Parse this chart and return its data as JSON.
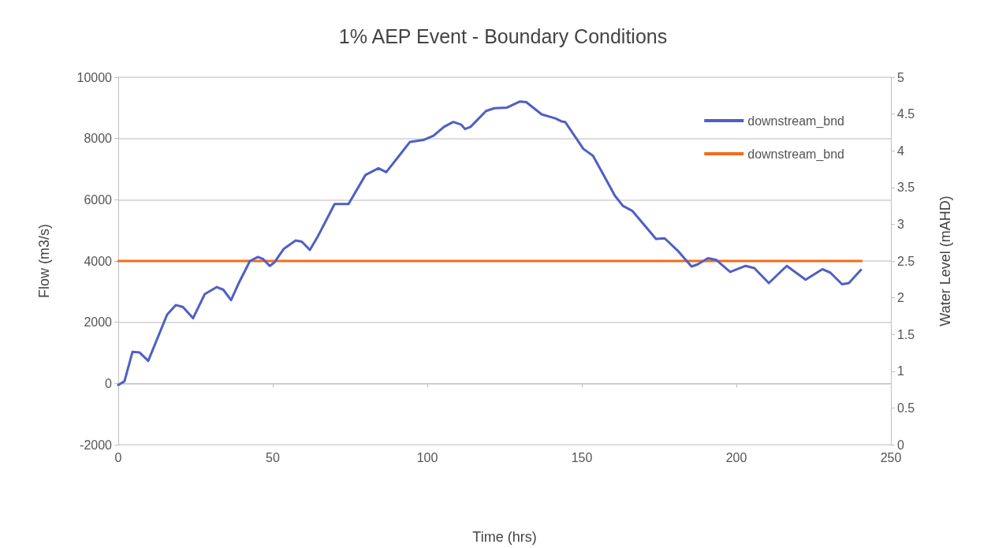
{
  "chart_data": {
    "type": "line",
    "title": "1% AEP Event - Boundary Conditions",
    "xlabel": "Time (hrs)",
    "ylabel": "Flow (m3/s)",
    "y2label": "Water Level (mAHD)",
    "xlim": [
      0,
      250
    ],
    "xticks": [
      0,
      50,
      100,
      150,
      200,
      250
    ],
    "ylim": [
      -2000,
      10000
    ],
    "yticks": [
      -2000,
      0,
      2000,
      4000,
      6000,
      8000,
      10000
    ],
    "y2lim": [
      0,
      5
    ],
    "y2ticks": [
      0,
      0.5,
      1,
      1.5,
      2,
      2.5,
      3,
      3.5,
      4,
      4.5,
      5
    ],
    "grid": "y",
    "legend": "top right",
    "marker": "none",
    "line_style": "solid",
    "series": [
      {
        "name": "downstream_bnd",
        "color": "#4f5fc4",
        "x": [
          0,
          2,
          4.6,
          6.9,
          9.7,
          15.8,
          18.6,
          20.9,
          24.2,
          28,
          31.9,
          34,
          36.5,
          39,
          42.6,
          45.2,
          46.8,
          49,
          50.5,
          53.6,
          57.4,
          59.4,
          62,
          64.5,
          70,
          72,
          74.5,
          80,
          84.2,
          86.7,
          94.4,
          98.7,
          102,
          105.4,
          108.4,
          111,
          112.2,
          114,
          119,
          121.7,
          125.8,
          130,
          132,
          137,
          141.6,
          143.4,
          144.6,
          150.5,
          153.6,
          160.7,
          163.3,
          166.3,
          174,
          176.8,
          181,
          185.5,
          187.5,
          190.8,
          193.4,
          198,
          203,
          205.8,
          210.5,
          216.3,
          222.4,
          227.8,
          230.4,
          234.2,
          236.4,
          240.3
        ],
        "values": [
          -50,
          70,
          1030,
          1010,
          740,
          2250,
          2560,
          2500,
          2130,
          2920,
          3150,
          3060,
          2720,
          3280,
          4000,
          4130,
          4070,
          3840,
          3950,
          4400,
          4670,
          4630,
          4360,
          4790,
          5860,
          5860,
          5860,
          6810,
          7030,
          6900,
          7890,
          7950,
          8090,
          8380,
          8540,
          8450,
          8310,
          8380,
          8900,
          8990,
          9010,
          9210,
          9190,
          8790,
          8650,
          8560,
          8540,
          7660,
          7440,
          6130,
          5800,
          5640,
          4720,
          4740,
          4340,
          3820,
          3890,
          4090,
          4040,
          3640,
          3840,
          3770,
          3280,
          3840,
          3390,
          3730,
          3620,
          3240,
          3280,
          3710
        ]
      },
      {
        "name": "downstream_bnd",
        "color": "#f26c1c",
        "axis": "y2",
        "x": [
          0,
          240.5
        ],
        "values": [
          2.5,
          2.5
        ]
      }
    ]
  }
}
